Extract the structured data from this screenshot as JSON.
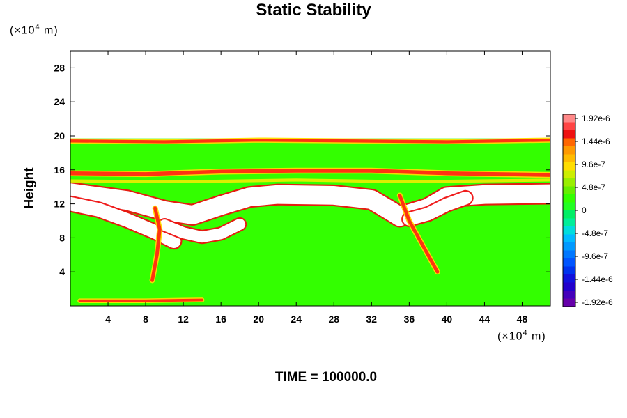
{
  "chart_data": {
    "type": "heatmap",
    "title": "Static Stability",
    "ylabel": "Height",
    "y_units": {
      "prefix": "(×10",
      "exp": "4",
      "suffix": " m)"
    },
    "x_units": {
      "prefix": "(×10",
      "exp": "4",
      "suffix": " m)"
    },
    "x_range": [
      0,
      51
    ],
    "y_range": [
      0,
      30
    ],
    "x_ticks": [
      4,
      8,
      12,
      16,
      20,
      24,
      28,
      32,
      36,
      40,
      44,
      48
    ],
    "y_ticks": [
      4,
      8,
      12,
      16,
      20,
      24,
      28
    ],
    "data_top": 19.7,
    "colorbar": {
      "labels": [
        "1.92e-6",
        "1.44e-6",
        "9.6e-7",
        "4.8e-7",
        "0",
        "-4.8e-7",
        "-9.6e-7",
        "-1.44e-6",
        "-1.92e-6"
      ],
      "colors": [
        "#ff8888",
        "#ff4444",
        "#ee1111",
        "#ff6600",
        "#ff9900",
        "#ffbb00",
        "#ffdd00",
        "#ccee00",
        "#99ee00",
        "#66ee00",
        "#33ff00",
        "#22ff22",
        "#00ee66",
        "#00ee99",
        "#00dddd",
        "#00bbff",
        "#0099ff",
        "#0077ff",
        "#0055ff",
        "#0033ee",
        "#1111dd",
        "#2200cc",
        "#4400bb",
        "#6600aa"
      ]
    },
    "background_color": "#33ff00",
    "features": [
      {
        "name": "main-stable-layer",
        "kind": "white",
        "width": 2.2,
        "points": [
          [
            0,
            13.3
          ],
          [
            6,
            12.4
          ],
          [
            10,
            11.2
          ],
          [
            13,
            10.7
          ],
          [
            16,
            11.8
          ],
          [
            19,
            12.8
          ],
          [
            22,
            13.1
          ],
          [
            28,
            13.0
          ],
          [
            32,
            12.5
          ],
          [
            34,
            11.2
          ],
          [
            35,
            10.5
          ],
          [
            38,
            11.5
          ],
          [
            40,
            12.8
          ],
          [
            44,
            13.1
          ],
          [
            51,
            13.2
          ]
        ]
      },
      {
        "name": "left-descending-layer",
        "kind": "white",
        "width": 1.6,
        "points": [
          [
            0,
            12.0
          ],
          [
            3,
            11.3
          ],
          [
            6,
            10.1
          ],
          [
            9,
            8.7
          ],
          [
            11,
            7.6
          ]
        ]
      },
      {
        "name": "inner-descent",
        "kind": "white",
        "width": 1.3,
        "points": [
          [
            10,
            9.5
          ],
          [
            12,
            8.6
          ],
          [
            14,
            8.1
          ],
          [
            16,
            8.5
          ],
          [
            18,
            9.6
          ]
        ]
      },
      {
        "name": "right-rising-layer",
        "kind": "white",
        "width": 1.5,
        "points": [
          [
            36,
            10.2
          ],
          [
            38,
            10.8
          ],
          [
            40,
            11.9
          ],
          [
            42,
            12.7
          ]
        ]
      },
      {
        "name": "tropopause-layer",
        "kind": "red",
        "width": 0.45,
        "points": [
          [
            0,
            15.6
          ],
          [
            8,
            15.5
          ],
          [
            16,
            15.8
          ],
          [
            24,
            15.9
          ],
          [
            32,
            15.9
          ],
          [
            40,
            15.6
          ],
          [
            51,
            15.4
          ]
        ]
      },
      {
        "name": "top-edge-layer",
        "kind": "red",
        "width": 0.35,
        "points": [
          [
            0,
            19.4
          ],
          [
            10,
            19.3
          ],
          [
            20,
            19.5
          ],
          [
            30,
            19.4
          ],
          [
            40,
            19.3
          ],
          [
            51,
            19.5
          ]
        ]
      },
      {
        "name": "mid-layer",
        "kind": "yellow",
        "width": 0.35,
        "points": [
          [
            0,
            14.7
          ],
          [
            12,
            14.6
          ],
          [
            24,
            14.8
          ],
          [
            36,
            14.6
          ],
          [
            51,
            14.8
          ]
        ]
      },
      {
        "name": "low-red-band",
        "kind": "red",
        "width": 0.3,
        "points": [
          [
            1,
            0.6
          ],
          [
            8,
            0.6
          ],
          [
            14,
            0.7
          ]
        ]
      },
      {
        "name": "left-vertical-red",
        "kind": "red",
        "width": 0.4,
        "points": [
          [
            9,
            11.5
          ],
          [
            9.5,
            9
          ],
          [
            9.2,
            6
          ],
          [
            8.7,
            3
          ]
        ]
      },
      {
        "name": "right-vertical-red",
        "kind": "red",
        "width": 0.4,
        "points": [
          [
            35,
            13
          ],
          [
            36,
            10
          ],
          [
            37.5,
            7
          ],
          [
            39,
            4
          ]
        ]
      }
    ]
  },
  "time_label": "TIME = 100000.0"
}
